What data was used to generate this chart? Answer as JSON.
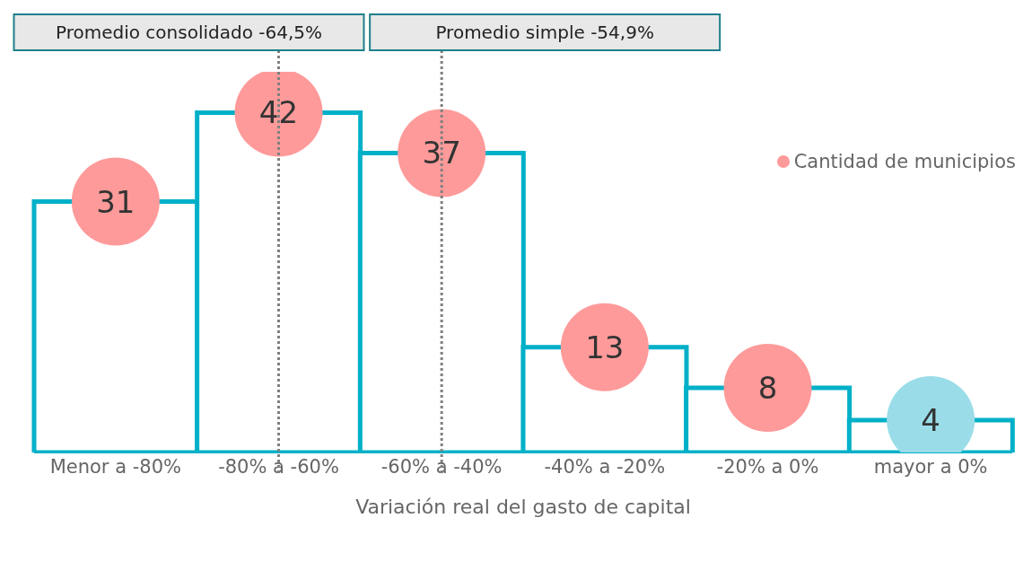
{
  "chart_data": {
    "type": "bar",
    "xlabel": "Variación real del gasto de capital",
    "categories": [
      "Menor a -80%",
      "-80% a -60%",
      "-60% a -40%",
      "-40% a -20%",
      "-20% a 0%",
      "mayor a 0%"
    ],
    "series": [
      {
        "color": "#00b0c8",
        "values": [
          31,
          42,
          37,
          13,
          8,
          4
        ]
      },
      {
        "type": "scatter",
        "name": "Cantidad de municipios",
        "values": [
          31,
          42,
          37,
          13,
          8,
          4
        ],
        "value_labels": [
          "31",
          "42",
          "37",
          "13",
          "8",
          "4"
        ],
        "colors": [
          "#ff9a9a",
          "#ff9a9a",
          "#ff9a9a",
          "#ff9a9a",
          "#ff9a9a",
          "#9adde8"
        ]
      }
    ],
    "annotations": [
      "Promedio consolidado -64,5%",
      "Promedio simple -54,9%"
    ],
    "marker": "circle",
    "legend": "top right"
  }
}
